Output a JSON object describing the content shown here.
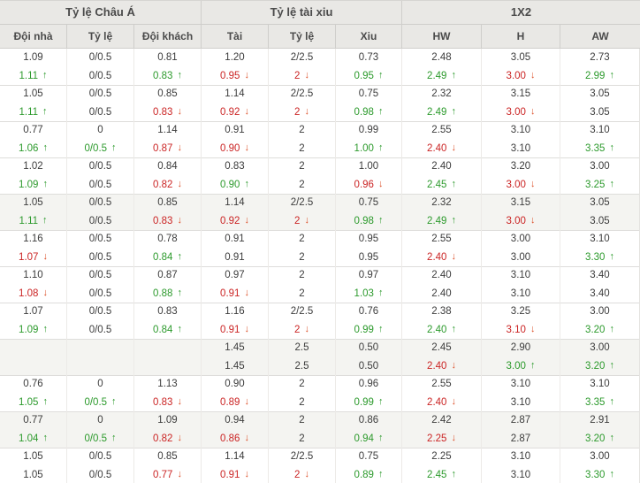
{
  "header": {
    "groups": [
      {
        "label": "Tỷ lệ Châu Á"
      },
      {
        "label": "Tỷ lệ tài xiu"
      },
      {
        "label": "1X2"
      }
    ],
    "columns": [
      "Đội nhà",
      "Tỷ lệ",
      "Đội khách",
      "Tài",
      "Tỷ lệ",
      "Xiu",
      "HW",
      "H",
      "AW"
    ]
  },
  "colors": {
    "up": "#2c9a2c",
    "down": "#cb2424",
    "down_arrow": "#dd4f28",
    "text": "#3c3c3c",
    "header_bg": "#e9e8e5",
    "shaded_bg": "#f4f4f1"
  },
  "groups": [
    {
      "shaded": false,
      "rows": [
        [
          {
            "v": "1.09"
          },
          {
            "v": "0/0.5"
          },
          {
            "v": "0.81"
          },
          {
            "v": "1.20"
          },
          {
            "v": "2/2.5"
          },
          {
            "v": "0.73"
          },
          {
            "v": "2.48"
          },
          {
            "v": "3.05"
          },
          {
            "v": "2.73"
          }
        ],
        [
          {
            "v": "1.11",
            "c": "u"
          },
          {
            "v": "0/0.5"
          },
          {
            "v": "0.83",
            "c": "u"
          },
          {
            "v": "0.95",
            "c": "d"
          },
          {
            "v": "2",
            "c": "d"
          },
          {
            "v": "0.95",
            "c": "u"
          },
          {
            "v": "2.49",
            "c": "u"
          },
          {
            "v": "3.00",
            "c": "d"
          },
          {
            "v": "2.99",
            "c": "u"
          }
        ]
      ]
    },
    {
      "shaded": false,
      "rows": [
        [
          {
            "v": "1.05"
          },
          {
            "v": "0/0.5"
          },
          {
            "v": "0.85"
          },
          {
            "v": "1.14"
          },
          {
            "v": "2/2.5"
          },
          {
            "v": "0.75"
          },
          {
            "v": "2.32"
          },
          {
            "v": "3.15"
          },
          {
            "v": "3.05"
          }
        ],
        [
          {
            "v": "1.11",
            "c": "u"
          },
          {
            "v": "0/0.5"
          },
          {
            "v": "0.83",
            "c": "d"
          },
          {
            "v": "0.92",
            "c": "d"
          },
          {
            "v": "2",
            "c": "d"
          },
          {
            "v": "0.98",
            "c": "u"
          },
          {
            "v": "2.49",
            "c": "u"
          },
          {
            "v": "3.00",
            "c": "d"
          },
          {
            "v": "3.05"
          }
        ]
      ]
    },
    {
      "shaded": false,
      "rows": [
        [
          {
            "v": "0.77"
          },
          {
            "v": "0"
          },
          {
            "v": "1.14"
          },
          {
            "v": "0.91"
          },
          {
            "v": "2"
          },
          {
            "v": "0.99"
          },
          {
            "v": "2.55"
          },
          {
            "v": "3.10"
          },
          {
            "v": "3.10"
          }
        ],
        [
          {
            "v": "1.06",
            "c": "u"
          },
          {
            "v": "0/0.5",
            "c": "u"
          },
          {
            "v": "0.87",
            "c": "d"
          },
          {
            "v": "0.90",
            "c": "d"
          },
          {
            "v": "2"
          },
          {
            "v": "1.00",
            "c": "u"
          },
          {
            "v": "2.40",
            "c": "d"
          },
          {
            "v": "3.10"
          },
          {
            "v": "3.35",
            "c": "u"
          }
        ]
      ]
    },
    {
      "shaded": false,
      "rows": [
        [
          {
            "v": "1.02"
          },
          {
            "v": "0/0.5"
          },
          {
            "v": "0.84"
          },
          {
            "v": "0.83"
          },
          {
            "v": "2"
          },
          {
            "v": "1.00"
          },
          {
            "v": "2.40"
          },
          {
            "v": "3.20"
          },
          {
            "v": "3.00"
          }
        ],
        [
          {
            "v": "1.09",
            "c": "u"
          },
          {
            "v": "0/0.5"
          },
          {
            "v": "0.82",
            "c": "d"
          },
          {
            "v": "0.90",
            "c": "u"
          },
          {
            "v": "2"
          },
          {
            "v": "0.96",
            "c": "d"
          },
          {
            "v": "2.45",
            "c": "u"
          },
          {
            "v": "3.00",
            "c": "d"
          },
          {
            "v": "3.25",
            "c": "u"
          }
        ]
      ]
    },
    {
      "shaded": true,
      "rows": [
        [
          {
            "v": "1.05"
          },
          {
            "v": "0/0.5"
          },
          {
            "v": "0.85"
          },
          {
            "v": "1.14"
          },
          {
            "v": "2/2.5"
          },
          {
            "v": "0.75"
          },
          {
            "v": "2.32"
          },
          {
            "v": "3.15"
          },
          {
            "v": "3.05"
          }
        ],
        [
          {
            "v": "1.11",
            "c": "u"
          },
          {
            "v": "0/0.5"
          },
          {
            "v": "0.83",
            "c": "d"
          },
          {
            "v": "0.92",
            "c": "d"
          },
          {
            "v": "2",
            "c": "d"
          },
          {
            "v": "0.98",
            "c": "u"
          },
          {
            "v": "2.49",
            "c": "u"
          },
          {
            "v": "3.00",
            "c": "d"
          },
          {
            "v": "3.05"
          }
        ]
      ]
    },
    {
      "shaded": false,
      "rows": [
        [
          {
            "v": "1.16"
          },
          {
            "v": "0/0.5"
          },
          {
            "v": "0.78"
          },
          {
            "v": "0.91"
          },
          {
            "v": "2"
          },
          {
            "v": "0.95"
          },
          {
            "v": "2.55"
          },
          {
            "v": "3.00"
          },
          {
            "v": "3.10"
          }
        ],
        [
          {
            "v": "1.07",
            "c": "d"
          },
          {
            "v": "0/0.5"
          },
          {
            "v": "0.84",
            "c": "u"
          },
          {
            "v": "0.91"
          },
          {
            "v": "2"
          },
          {
            "v": "0.95"
          },
          {
            "v": "2.40",
            "c": "d"
          },
          {
            "v": "3.00"
          },
          {
            "v": "3.30",
            "c": "u"
          }
        ]
      ]
    },
    {
      "shaded": false,
      "rows": [
        [
          {
            "v": "1.10"
          },
          {
            "v": "0/0.5"
          },
          {
            "v": "0.87"
          },
          {
            "v": "0.97"
          },
          {
            "v": "2"
          },
          {
            "v": "0.97"
          },
          {
            "v": "2.40"
          },
          {
            "v": "3.10"
          },
          {
            "v": "3.40"
          }
        ],
        [
          {
            "v": "1.08",
            "c": "d"
          },
          {
            "v": "0/0.5"
          },
          {
            "v": "0.88",
            "c": "u"
          },
          {
            "v": "0.91",
            "c": "d"
          },
          {
            "v": "2"
          },
          {
            "v": "1.03",
            "c": "u"
          },
          {
            "v": "2.40"
          },
          {
            "v": "3.10"
          },
          {
            "v": "3.40"
          }
        ]
      ]
    },
    {
      "shaded": false,
      "rows": [
        [
          {
            "v": "1.07"
          },
          {
            "v": "0/0.5"
          },
          {
            "v": "0.83"
          },
          {
            "v": "1.16"
          },
          {
            "v": "2/2.5"
          },
          {
            "v": "0.76"
          },
          {
            "v": "2.38"
          },
          {
            "v": "3.25"
          },
          {
            "v": "3.00"
          }
        ],
        [
          {
            "v": "1.09",
            "c": "u"
          },
          {
            "v": "0/0.5"
          },
          {
            "v": "0.84",
            "c": "u"
          },
          {
            "v": "0.91",
            "c": "d"
          },
          {
            "v": "2",
            "c": "d"
          },
          {
            "v": "0.99",
            "c": "u"
          },
          {
            "v": "2.40",
            "c": "u"
          },
          {
            "v": "3.10",
            "c": "d"
          },
          {
            "v": "3.20",
            "c": "u"
          }
        ]
      ]
    },
    {
      "shaded": true,
      "rows": [
        [
          {
            "v": ""
          },
          {
            "v": ""
          },
          {
            "v": ""
          },
          {
            "v": "1.45"
          },
          {
            "v": "2.5"
          },
          {
            "v": "0.50"
          },
          {
            "v": "2.45"
          },
          {
            "v": "2.90"
          },
          {
            "v": "3.00"
          }
        ],
        [
          {
            "v": ""
          },
          {
            "v": ""
          },
          {
            "v": ""
          },
          {
            "v": "1.45"
          },
          {
            "v": "2.5"
          },
          {
            "v": "0.50"
          },
          {
            "v": "2.40",
            "c": "d"
          },
          {
            "v": "3.00",
            "c": "u"
          },
          {
            "v": "3.20",
            "c": "u"
          }
        ]
      ]
    },
    {
      "shaded": false,
      "rows": [
        [
          {
            "v": "0.76"
          },
          {
            "v": "0"
          },
          {
            "v": "1.13"
          },
          {
            "v": "0.90"
          },
          {
            "v": "2"
          },
          {
            "v": "0.96"
          },
          {
            "v": "2.55"
          },
          {
            "v": "3.10"
          },
          {
            "v": "3.10"
          }
        ],
        [
          {
            "v": "1.05",
            "c": "u"
          },
          {
            "v": "0/0.5",
            "c": "u"
          },
          {
            "v": "0.83",
            "c": "d"
          },
          {
            "v": "0.89",
            "c": "d"
          },
          {
            "v": "2"
          },
          {
            "v": "0.99",
            "c": "u"
          },
          {
            "v": "2.40",
            "c": "d"
          },
          {
            "v": "3.10"
          },
          {
            "v": "3.35",
            "c": "u"
          }
        ]
      ]
    },
    {
      "shaded": true,
      "rows": [
        [
          {
            "v": "0.77"
          },
          {
            "v": "0"
          },
          {
            "v": "1.09"
          },
          {
            "v": "0.94"
          },
          {
            "v": "2"
          },
          {
            "v": "0.86"
          },
          {
            "v": "2.42"
          },
          {
            "v": "2.87"
          },
          {
            "v": "2.91"
          }
        ],
        [
          {
            "v": "1.04",
            "c": "u"
          },
          {
            "v": "0/0.5",
            "c": "u"
          },
          {
            "v": "0.82",
            "c": "d"
          },
          {
            "v": "0.86",
            "c": "d"
          },
          {
            "v": "2"
          },
          {
            "v": "0.94",
            "c": "u"
          },
          {
            "v": "2.25",
            "c": "d"
          },
          {
            "v": "2.87"
          },
          {
            "v": "3.20",
            "c": "u"
          }
        ]
      ]
    },
    {
      "shaded": false,
      "rows": [
        [
          {
            "v": "1.05"
          },
          {
            "v": "0/0.5"
          },
          {
            "v": "0.85"
          },
          {
            "v": "1.14"
          },
          {
            "v": "2/2.5"
          },
          {
            "v": "0.75"
          },
          {
            "v": "2.25"
          },
          {
            "v": "3.10"
          },
          {
            "v": "3.00"
          }
        ],
        [
          {
            "v": "1.05"
          },
          {
            "v": "0/0.5"
          },
          {
            "v": "0.77",
            "c": "d"
          },
          {
            "v": "0.91",
            "c": "d"
          },
          {
            "v": "2",
            "c": "d"
          },
          {
            "v": "0.89",
            "c": "u"
          },
          {
            "v": "2.45",
            "c": "u"
          },
          {
            "v": "3.10"
          },
          {
            "v": "3.30",
            "c": "u"
          }
        ]
      ]
    }
  ]
}
